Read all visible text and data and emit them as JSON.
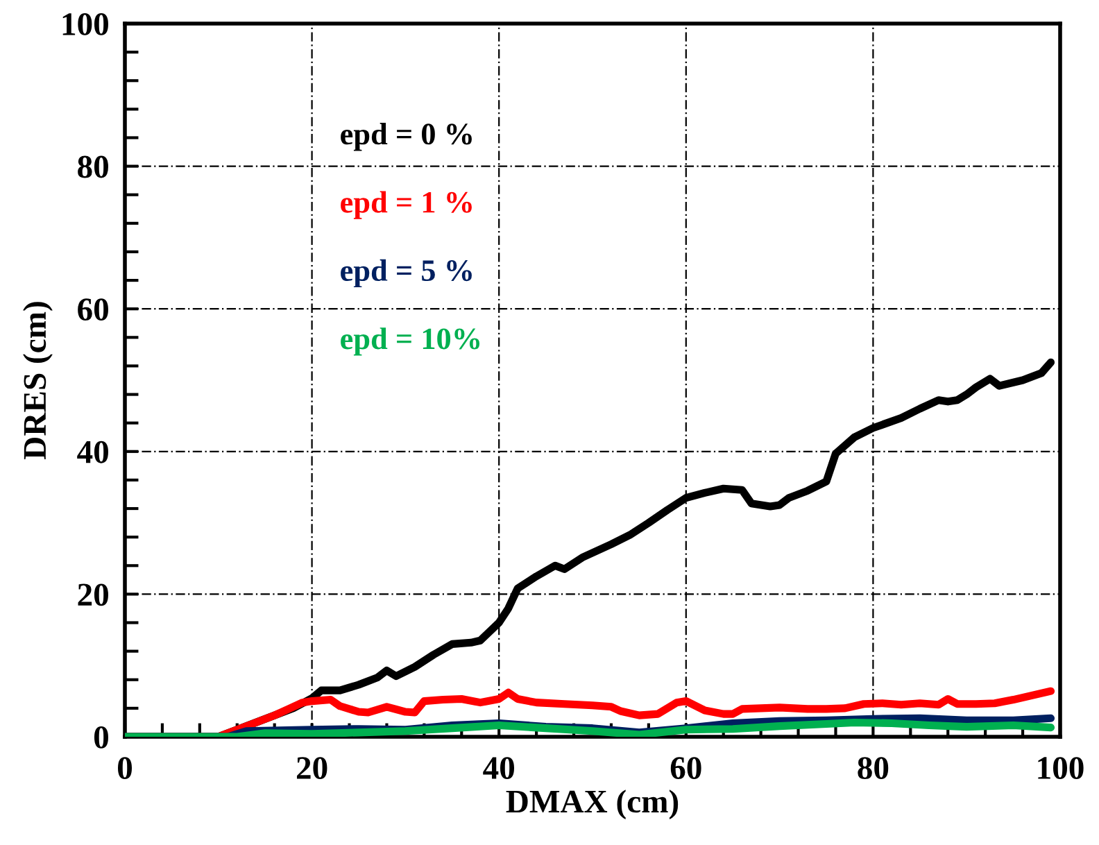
{
  "chart_data": {
    "type": "line",
    "xlabel": "DMAX (cm)",
    "ylabel": "DRES (cm)",
    "xlim": [
      0,
      100
    ],
    "ylim": [
      0,
      100
    ],
    "xticks": [
      0,
      {
        "value": 4,
        "label": null
      },
      {
        "value": 8,
        "label": null
      },
      {
        "value": 12,
        "label": null
      },
      {
        "value": 16,
        "label": null
      },
      20,
      {
        "value": 24,
        "label": null
      },
      {
        "value": 28,
        "label": null
      },
      {
        "value": 32,
        "label": null
      },
      {
        "value": 36,
        "label": null
      },
      40,
      {
        "value": 44,
        "label": null
      },
      {
        "value": 48,
        "label": null
      },
      {
        "value": 52,
        "label": null
      },
      {
        "value": 56,
        "label": null
      },
      60,
      {
        "value": 64,
        "label": null
      },
      {
        "value": 68,
        "label": null
      },
      {
        "value": 72,
        "label": null
      },
      {
        "value": 76,
        "label": null
      },
      80,
      {
        "value": 84,
        "label": null
      },
      {
        "value": 88,
        "label": null
      },
      {
        "value": 92,
        "label": null
      },
      {
        "value": 96,
        "label": null
      },
      100
    ],
    "yticks": [
      0,
      {
        "value": 4,
        "label": null
      },
      {
        "value": 8,
        "label": null
      },
      {
        "value": 12,
        "label": null
      },
      {
        "value": 16,
        "label": null
      },
      20,
      {
        "value": 24,
        "label": null
      },
      {
        "value": 28,
        "label": null
      },
      {
        "value": 32,
        "label": null
      },
      {
        "value": 36,
        "label": null
      },
      40,
      {
        "value": 44,
        "label": null
      },
      {
        "value": 48,
        "label": null
      },
      {
        "value": 52,
        "label": null
      },
      {
        "value": 56,
        "label": null
      },
      60,
      {
        "value": 64,
        "label": null
      },
      {
        "value": 68,
        "label": null
      },
      {
        "value": 72,
        "label": null
      },
      {
        "value": 76,
        "label": null
      },
      80,
      {
        "value": 84,
        "label": null
      },
      {
        "value": 88,
        "label": null
      },
      {
        "value": 92,
        "label": null
      },
      {
        "value": 96,
        "label": null
      },
      100
    ],
    "grid": true,
    "legend": "top left",
    "marker": "none",
    "line_style": "solid",
    "series": [
      {
        "name": "epd = 0 %",
        "color": "#000000",
        "x": [
          0,
          10,
          12,
          15,
          18,
          20,
          21,
          23,
          25,
          27,
          28,
          29,
          31,
          33,
          35,
          37,
          38,
          40,
          41,
          42,
          44,
          46,
          47,
          49,
          52,
          54,
          56,
          58,
          60,
          62,
          64,
          66,
          67,
          69,
          70,
          71,
          73,
          75,
          76,
          78,
          80,
          83,
          85,
          87,
          88,
          89,
          90,
          91,
          92.5,
          93.5,
          96,
          98,
          99
        ],
        "values": [
          0,
          0,
          1,
          2.5,
          4,
          5.4,
          6.5,
          6.5,
          7.3,
          8.3,
          9.3,
          8.5,
          9.8,
          11.5,
          13,
          13.2,
          13.5,
          16,
          18,
          20.8,
          22.5,
          24,
          23.5,
          25.2,
          27,
          28.3,
          30,
          31.8,
          33.5,
          34.2,
          34.8,
          34.6,
          32.7,
          32.3,
          32.5,
          33.5,
          34.5,
          35.8,
          39.7,
          42,
          43.3,
          44.7,
          46,
          47.2,
          47,
          47.2,
          48,
          49,
          50.2,
          49.2,
          50,
          51,
          52.5
        ]
      },
      {
        "name": "epd = 1 %",
        "color": "#ff0000",
        "x": [
          0,
          10,
          13,
          16,
          19,
          20,
          22,
          23,
          25,
          26,
          28,
          30,
          31,
          32,
          34,
          36,
          38,
          40,
          41,
          42,
          44,
          47,
          50,
          52,
          53,
          55,
          57,
          59,
          60,
          62,
          64,
          65,
          66,
          68,
          70,
          73,
          75,
          77,
          79,
          81,
          83,
          85,
          87,
          88,
          89,
          91,
          93,
          95,
          97,
          99
        ],
        "values": [
          0,
          0,
          1.5,
          3,
          4.8,
          5,
          5.2,
          4.3,
          3.5,
          3.4,
          4.2,
          3.5,
          3.4,
          5,
          5.2,
          5.3,
          4.8,
          5.3,
          6.2,
          5.3,
          4.8,
          4.6,
          4.4,
          4.2,
          3.6,
          3,
          3.2,
          4.8,
          5,
          3.7,
          3.2,
          3.2,
          3.9,
          4,
          4.1,
          3.9,
          3.9,
          4,
          4.6,
          4.7,
          4.5,
          4.7,
          4.5,
          5.3,
          4.6,
          4.6,
          4.7,
          5.2,
          5.8,
          6.4
        ]
      },
      {
        "name": "epd = 5 %",
        "color": "#002060",
        "x": [
          0,
          11,
          13,
          20,
          25,
          30,
          35,
          40,
          45,
          50,
          55,
          60,
          65,
          70,
          75,
          80,
          85,
          90,
          95,
          99
        ],
        "values": [
          0,
          0,
          0.8,
          1,
          1.1,
          1,
          1.6,
          1.9,
          1.4,
          1.2,
          0.6,
          1.2,
          1.9,
          2.2,
          2.3,
          2.5,
          2.6,
          2.3,
          2.3,
          2.6
        ]
      },
      {
        "name": "epd = 10%",
        "color": "#00b050",
        "x": [
          0,
          12,
          15,
          20,
          25,
          30,
          35,
          40,
          45,
          50,
          55,
          60,
          65,
          70,
          75,
          78,
          82,
          86,
          90,
          95,
          99
        ],
        "values": [
          0,
          0,
          0.5,
          0.4,
          0.6,
          0.8,
          1.2,
          1.6,
          1.2,
          0.8,
          0.3,
          1,
          1.1,
          1.5,
          1.8,
          2,
          1.9,
          1.6,
          1.4,
          1.6,
          1.3
        ]
      }
    ]
  }
}
